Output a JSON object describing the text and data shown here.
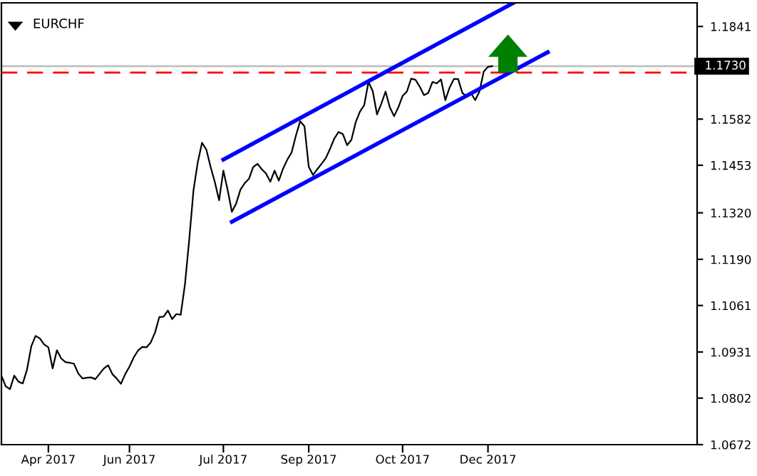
{
  "chart_data": {
    "type": "line",
    "title": "EURCHF",
    "categories": [
      null,
      null,
      null,
      null,
      null,
      null,
      null,
      null,
      null,
      null,
      null,
      "Apr 2017",
      null,
      null,
      null,
      null,
      null,
      null,
      null,
      null,
      null,
      null,
      null,
      null,
      null,
      null,
      null,
      null,
      null,
      null,
      "Jun 2017",
      null,
      null,
      null,
      null,
      null,
      null,
      null,
      null,
      null,
      null,
      null,
      null,
      null,
      null,
      null,
      null,
      null,
      null,
      null,
      null,
      null,
      "Jul 2017",
      null,
      null,
      null,
      null,
      null,
      null,
      null,
      null,
      null,
      null,
      null,
      null,
      null,
      null,
      null,
      null,
      null,
      null,
      null,
      "Sep 2017",
      null,
      null,
      null,
      null,
      null,
      null,
      null,
      null,
      null,
      null,
      null,
      null,
      null,
      null,
      null,
      null,
      null,
      null,
      null,
      null,
      null,
      "Oct 2017",
      null,
      null,
      null,
      null,
      null,
      null,
      null,
      null,
      null,
      null,
      null,
      null,
      null,
      null,
      null,
      null,
      null,
      null,
      null,
      "Dec 2017",
      null,
      null,
      null,
      null,
      null,
      null,
      null,
      null,
      null,
      null,
      null,
      null,
      null,
      null,
      null,
      null,
      null,
      null,
      null,
      null,
      null,
      null,
      null,
      null,
      null,
      null,
      null,
      null,
      null,
      null,
      null,
      null,
      null,
      null,
      null,
      null,
      null,
      null,
      null,
      null,
      null,
      null,
      null,
      null,
      null,
      null,
      null,
      null,
      null
    ],
    "ylim": [
      1.0672,
      1.1907
    ],
    "yticks": [
      {
        "value": 1.0672,
        "label": "1.0672"
      },
      {
        "value": 1.0802,
        "label": "1.0802"
      },
      {
        "value": 1.0931,
        "label": "1.0931"
      },
      {
        "value": 1.1061,
        "label": "1.1061"
      },
      {
        "value": 1.119,
        "label": "1.1190"
      },
      {
        "value": 1.132,
        "label": "1.1320"
      },
      {
        "value": 1.1453,
        "label": "1.1453"
      },
      {
        "value": 1.1582,
        "label": "1.1582"
      },
      {
        "value": 1.1712,
        "label": null
      },
      {
        "value": 1.1841,
        "label": "1.1841"
      }
    ],
    "marker": "none",
    "line_style": "solid",
    "series": [
      {
        "color": "#000000",
        "values": [
          1.0865,
          1.0835,
          1.0827,
          1.0865,
          1.0848,
          1.0843,
          1.0882,
          1.0947,
          1.0976,
          1.0969,
          1.0952,
          1.0944,
          1.0885,
          1.0936,
          1.0913,
          1.0903,
          1.0901,
          1.0898,
          1.0871,
          1.0857,
          1.0859,
          1.086,
          1.0855,
          1.087,
          1.0885,
          1.0894,
          1.0869,
          1.0857,
          1.0842,
          1.0869,
          1.089,
          1.0916,
          1.0935,
          1.0945,
          1.0944,
          1.0958,
          1.0986,
          1.1029,
          1.103,
          1.1047,
          1.1023,
          1.1037,
          1.1035,
          1.112,
          1.1245,
          1.1383,
          1.1461,
          1.1516,
          1.1497,
          1.1449,
          1.1406,
          1.1355,
          1.1438,
          1.1384,
          1.1323,
          1.1346,
          1.1385,
          1.1403,
          1.1415,
          1.1448,
          1.1457,
          1.1442,
          1.143,
          1.1407,
          1.1438,
          1.141,
          1.1444,
          1.1469,
          1.1489,
          1.1536,
          1.1576,
          1.1562,
          1.1449,
          1.1426,
          1.1442,
          1.1457,
          1.1473,
          1.1499,
          1.1528,
          1.1546,
          1.154,
          1.1509,
          1.1524,
          1.1573,
          1.1603,
          1.1621,
          1.1686,
          1.166,
          1.1595,
          1.1625,
          1.1659,
          1.1615,
          1.159,
          1.1615,
          1.1647,
          1.1659,
          1.1695,
          1.1692,
          1.1673,
          1.1649,
          1.1655,
          1.1686,
          1.1682,
          1.1693,
          1.1635,
          1.167,
          1.1694,
          1.1694,
          1.1655,
          1.1646,
          1.1655,
          1.1635,
          1.1659,
          1.1715,
          1.1728,
          1.173,
          null,
          null,
          null,
          null,
          null,
          null,
          null,
          null,
          null,
          null,
          null,
          null,
          null,
          null,
          null,
          null,
          null,
          null,
          null,
          null,
          null,
          null,
          null,
          null,
          null,
          null,
          null,
          null,
          null,
          null,
          null,
          null,
          null,
          null,
          null,
          null,
          null,
          null,
          null,
          null,
          null,
          null,
          null,
          null,
          null,
          null,
          null,
          null
        ]
      },
      {
        "color": "#0000ff",
        "values": [
          null,
          null,
          null,
          null,
          null,
          null,
          null,
          null,
          null,
          null,
          null,
          null,
          null,
          null,
          null,
          null,
          null,
          null,
          null,
          null,
          null,
          null,
          null,
          null,
          null,
          null,
          null,
          null,
          null,
          null,
          null,
          null,
          null,
          null,
          null,
          null,
          null,
          null,
          null,
          null,
          null,
          null,
          null,
          null,
          null,
          null,
          null,
          null,
          null,
          null,
          null,
          null,
          1.1469,
          null,
          null,
          null,
          null,
          null,
          null,
          null,
          null,
          null,
          null,
          null,
          null,
          null,
          null,
          null,
          null,
          null,
          null,
          null,
          null,
          null,
          null,
          null,
          null,
          null,
          null,
          null,
          null,
          null,
          null,
          null,
          null,
          null,
          null,
          null,
          null,
          null,
          null,
          null,
          null,
          null,
          null,
          null,
          null,
          null,
          null,
          null,
          null,
          null,
          null,
          null,
          null,
          null,
          null,
          null,
          null,
          null,
          null,
          null,
          null,
          null,
          null,
          null,
          null,
          null,
          null,
          null,
          1.1907,
          null,
          null,
          null,
          null,
          null,
          null,
          null,
          null,
          null,
          null,
          null,
          null,
          null,
          null,
          null,
          null,
          null,
          null,
          null,
          null,
          null,
          null,
          null,
          null,
          null,
          null,
          null,
          null,
          null,
          null,
          null,
          null,
          null,
          null,
          null,
          null,
          null,
          null,
          null,
          null,
          null,
          null,
          null
        ]
      },
      {
        "color": "#0000ff",
        "values": [
          null,
          null,
          null,
          null,
          null,
          null,
          null,
          null,
          null,
          null,
          null,
          null,
          null,
          null,
          null,
          null,
          null,
          null,
          null,
          null,
          null,
          null,
          null,
          null,
          null,
          null,
          null,
          null,
          null,
          null,
          null,
          null,
          null,
          null,
          null,
          null,
          null,
          null,
          null,
          null,
          null,
          null,
          null,
          null,
          null,
          null,
          null,
          null,
          null,
          null,
          null,
          null,
          null,
          null,
          1.1295,
          null,
          null,
          null,
          null,
          null,
          null,
          null,
          null,
          null,
          null,
          null,
          null,
          null,
          null,
          null,
          null,
          null,
          null,
          null,
          null,
          null,
          null,
          null,
          null,
          null,
          null,
          null,
          null,
          null,
          null,
          null,
          null,
          null,
          null,
          null,
          null,
          null,
          null,
          null,
          null,
          null,
          null,
          null,
          null,
          null,
          null,
          null,
          null,
          null,
          null,
          null,
          null,
          null,
          null,
          null,
          null,
          null,
          null,
          null,
          null,
          null,
          null,
          null,
          null,
          null,
          null,
          null,
          null,
          null,
          null,
          null,
          null,
          null,
          1.1769,
          null,
          null,
          null,
          null,
          null,
          null,
          null,
          null,
          null,
          null,
          null,
          null,
          null,
          null,
          null,
          null,
          null,
          null,
          null,
          null,
          null,
          null,
          null,
          null,
          null,
          null,
          null,
          null,
          null,
          null,
          null,
          null,
          null,
          null,
          null
        ]
      }
    ],
    "ref_lines": [
      {
        "axis": "y",
        "value": 1.1712,
        "color": "#ff0000",
        "line_style": "dashed"
      },
      {
        "axis": "y",
        "value": 1.173,
        "label": "1.1730",
        "color": "#c0c0c0",
        "line_style": "solid"
      }
    ]
  }
}
